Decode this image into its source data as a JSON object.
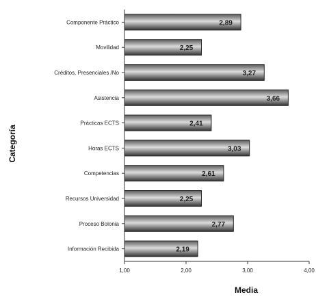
{
  "chart_data": {
    "type": "bar",
    "orientation": "horizontal",
    "categories": [
      "Componente Práctico",
      "Movilidad",
      "Créditos. Presenciales /No",
      "Asistencia",
      "Prácticas ECTS",
      "Horas ECTS",
      "Competencias",
      "Recursos Universidad",
      "Proceso Bolonia",
      "Información Recibida"
    ],
    "values": [
      2.89,
      2.25,
      3.27,
      3.66,
      2.41,
      3.03,
      2.61,
      2.25,
      2.77,
      2.19
    ],
    "value_labels": [
      "2,89",
      "2,25",
      "3,27",
      "3,66",
      "2,41",
      "3,03",
      "2,61",
      "2,25",
      "2,77",
      "2,19"
    ],
    "xlim": [
      1.0,
      4.0
    ],
    "xticks": [
      1.0,
      2.0,
      3.0,
      4.0
    ],
    "xtick_labels": [
      "1,00",
      "2,00",
      "3,00",
      "4,00"
    ],
    "xlabel": "Media",
    "ylabel": "Categoría",
    "grid": false,
    "legend": "none",
    "bar_color": "#4a4a4a",
    "bar_highlight_color": "#d8d8d8"
  }
}
